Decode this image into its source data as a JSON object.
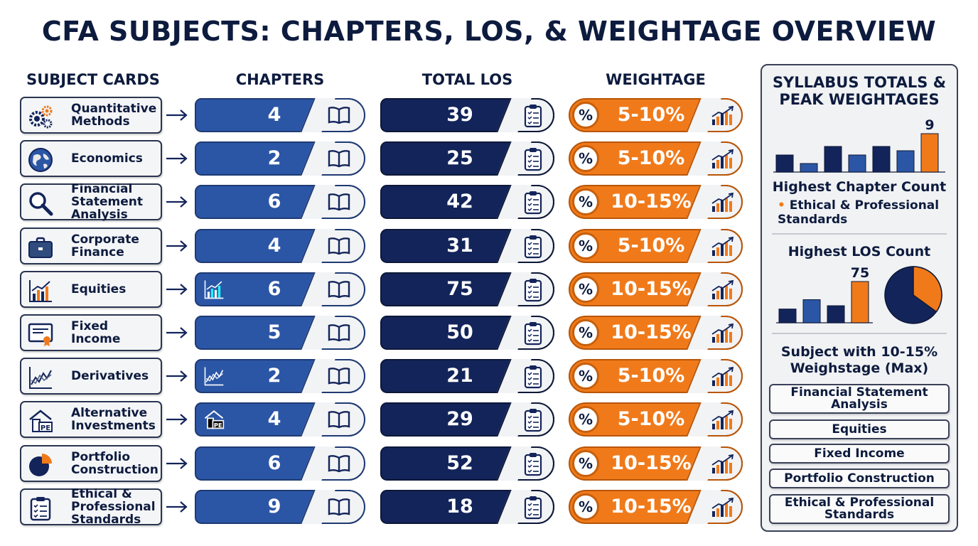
{
  "title": "CFA SUBJECTS: CHAPTERS, LOS, & WEIGHTAGE OVERVIEW",
  "columns": {
    "subjects": "SUBJECT CARDS",
    "chapters": "CHAPTERS",
    "los": "TOTAL LOS",
    "weightage": "WEIGHTAGE"
  },
  "colors": {
    "navy": "#13245a",
    "blue": "#2b56a6",
    "orange": "#f07a1a"
  },
  "subjects": [
    {
      "name": "Quantitative\nMethods",
      "icon": "gears-icon",
      "chapters": "4",
      "los": "39",
      "weightage": "5-10%"
    },
    {
      "name": "Economics",
      "icon": "globe-icon",
      "chapters": "2",
      "los": "25",
      "weightage": "5-10%"
    },
    {
      "name": "Financial\nStatement\nAnalysis",
      "icon": "magnifier-icon",
      "chapters": "6",
      "los": "42",
      "weightage": "10-15%"
    },
    {
      "name": "Corporate\nFinance",
      "icon": "briefcase-icon",
      "chapters": "4",
      "los": "31",
      "weightage": "5-10%"
    },
    {
      "name": "Equities",
      "icon": "bar-chart-icon",
      "chapters": "6",
      "los": "75",
      "weightage": "10-15%"
    },
    {
      "name": "Fixed\nIncome",
      "icon": "certificate-icon",
      "chapters": "5",
      "los": "50",
      "weightage": "10-15%"
    },
    {
      "name": "Derivatives",
      "icon": "zigzag-chart-icon",
      "chapters": "2",
      "los": "21",
      "weightage": "5-10%"
    },
    {
      "name": "Alternative\nInvestments",
      "icon": "house-pe-icon",
      "chapters": "4",
      "los": "29",
      "weightage": "5-10%"
    },
    {
      "name": "Portfolio\nConstruction",
      "icon": "pie-chart-icon",
      "chapters": "6",
      "los": "52",
      "weightage": "10-15%"
    },
    {
      "name": "Ethical &\nProfessional\nStandards",
      "icon": "clipboard-icon",
      "chapters": "9",
      "los": "18",
      "weightage": "10-15%"
    }
  ],
  "percent_symbol": "%",
  "summary": {
    "title": "SYLLABUS TOTALS &\nPEAK WEIGHTAGES",
    "chapter_chart": {
      "values": [
        4,
        2,
        6,
        4,
        6,
        5,
        9
      ],
      "highlight_label": "9"
    },
    "chapter_heading": "Highest Chapter Count",
    "chapter_winner": "Ethical & Professional Standards",
    "los_heading": "Highest LOS Count",
    "los_chart": {
      "values": [
        25,
        42,
        31,
        75
      ],
      "highlight_label": "75"
    },
    "los_pie": {
      "highlight_fraction": 0.35
    },
    "peak_heading": "Subject with 10-15%\nWeighstage (Max)",
    "peak_subjects": [
      "Financial Statement\nAnalysis",
      "Equities",
      "Fixed Income",
      "Portfolio Construction",
      "Ethical & Professional\nStandards"
    ]
  }
}
